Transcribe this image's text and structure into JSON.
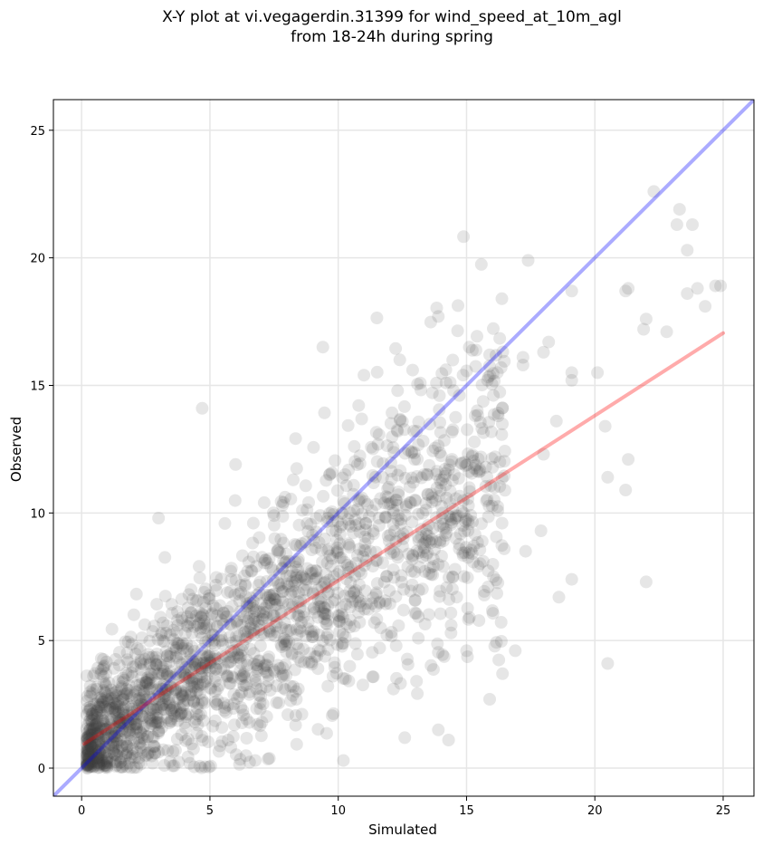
{
  "chart_data": {
    "type": "scatter",
    "title_lines": [
      "X-Y plot at vi.vegagerdin.31399 for wind_speed_at_10m_agl",
      "from 18-24h during spring"
    ],
    "xlabel": "Simulated",
    "ylabel": "Observed",
    "xlim": [
      -1.1,
      26.2
    ],
    "ylim": [
      -1.1,
      26.2
    ],
    "xticks": [
      0,
      5,
      10,
      15,
      20,
      25
    ],
    "yticks": [
      0,
      5,
      10,
      15,
      20,
      25
    ],
    "grid": true,
    "point_color": "#404040",
    "identity_line": {
      "color": "#0000ff",
      "x": [
        -1.1,
        26.2
      ],
      "y": [
        -1.1,
        26.2
      ]
    },
    "fit_line": {
      "color": "#ff0000",
      "x": [
        0.1,
        25
      ],
      "y": [
        0.95,
        17.05
      ]
    },
    "highlighted_points": [
      {
        "x": 22.3,
        "y": 22.6
      },
      {
        "x": 23.3,
        "y": 21.9
      },
      {
        "x": 23.2,
        "y": 21.3
      },
      {
        "x": 23.8,
        "y": 21.3
      },
      {
        "x": 23.6,
        "y": 20.3
      },
      {
        "x": 17.4,
        "y": 19.9
      },
      {
        "x": 24.7,
        "y": 18.9
      },
      {
        "x": 24.9,
        "y": 18.9
      },
      {
        "x": 21.3,
        "y": 18.8
      },
      {
        "x": 24.0,
        "y": 18.8
      },
      {
        "x": 19.1,
        "y": 18.7
      },
      {
        "x": 21.2,
        "y": 18.7
      },
      {
        "x": 23.6,
        "y": 18.6
      },
      {
        "x": 24.3,
        "y": 18.1
      },
      {
        "x": 13.9,
        "y": 17.7
      },
      {
        "x": 22.0,
        "y": 17.6
      },
      {
        "x": 21.9,
        "y": 17.2
      },
      {
        "x": 22.8,
        "y": 17.1
      },
      {
        "x": 18.2,
        "y": 16.7
      },
      {
        "x": 9.4,
        "y": 16.5
      },
      {
        "x": 18.0,
        "y": 16.3
      },
      {
        "x": 15.9,
        "y": 16.2
      },
      {
        "x": 17.2,
        "y": 16.1
      },
      {
        "x": 12.4,
        "y": 16.0
      },
      {
        "x": 17.2,
        "y": 15.8
      },
      {
        "x": 12.9,
        "y": 15.6
      },
      {
        "x": 20.1,
        "y": 15.5
      },
      {
        "x": 19.1,
        "y": 15.5
      },
      {
        "x": 11.0,
        "y": 15.4
      },
      {
        "x": 16.2,
        "y": 15.5
      },
      {
        "x": 19.1,
        "y": 15.2
      },
      {
        "x": 14.2,
        "y": 15.1
      },
      {
        "x": 4.7,
        "y": 14.1
      },
      {
        "x": 20.4,
        "y": 13.4
      },
      {
        "x": 18.5,
        "y": 13.6
      },
      {
        "x": 21.3,
        "y": 12.1
      },
      {
        "x": 20.5,
        "y": 11.4
      },
      {
        "x": 21.2,
        "y": 10.9
      },
      {
        "x": 19.1,
        "y": 7.4
      },
      {
        "x": 22.0,
        "y": 7.3
      },
      {
        "x": 18.6,
        "y": 6.7
      },
      {
        "x": 20.5,
        "y": 4.1
      },
      {
        "x": 15.9,
        "y": 2.7
      },
      {
        "x": 13.9,
        "y": 1.5
      },
      {
        "x": 14.3,
        "y": 1.1
      },
      {
        "x": 10.2,
        "y": 0.3
      },
      {
        "x": 16.9,
        "y": 4.6
      },
      {
        "x": 16.4,
        "y": 3.7
      },
      {
        "x": 17.3,
        "y": 8.5
      },
      {
        "x": 17.9,
        "y": 9.3
      },
      {
        "x": 18.0,
        "y": 12.3
      },
      {
        "x": 16.3,
        "y": 12.0
      },
      {
        "x": 14.4,
        "y": 5.6
      },
      {
        "x": 15.0,
        "y": 4.6
      },
      {
        "x": 3.0,
        "y": 9.8
      },
      {
        "x": 6.0,
        "y": 11.9
      }
    ],
    "density_model": {
      "count": 2000,
      "x_range": [
        0.2,
        16.5
      ],
      "fit_slope": 0.647,
      "fit_intercept": 0.93,
      "noise_sd": 1.9
    }
  }
}
